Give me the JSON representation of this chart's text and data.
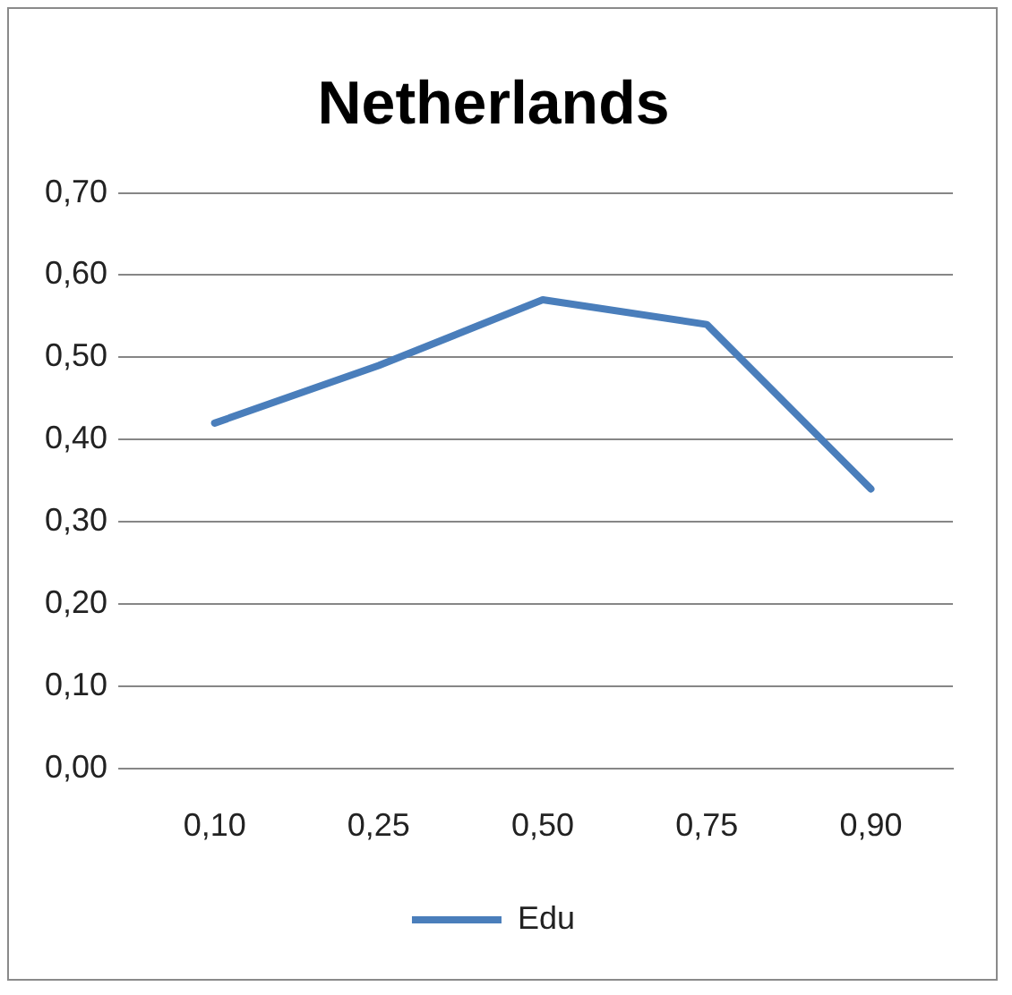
{
  "chart_data": {
    "type": "line",
    "title": "Netherlands",
    "categories": [
      "0,10",
      "0,25",
      "0,50",
      "0,75",
      "0,90"
    ],
    "series": [
      {
        "name": "Edu",
        "color": "#4a7ebb",
        "values": [
          0.42,
          0.49,
          0.57,
          0.54,
          0.34
        ]
      }
    ],
    "ylim": [
      0,
      0.7
    ],
    "yticks": [
      {
        "value": 0,
        "label": "0,00"
      },
      {
        "value": 0.1,
        "label": "0,10"
      },
      {
        "value": 0.2,
        "label": "0,20"
      },
      {
        "value": 0.3,
        "label": "0,30"
      },
      {
        "value": 0.4,
        "label": "0,40"
      },
      {
        "value": 0.5,
        "label": "0,50"
      },
      {
        "value": 0.6,
        "label": "0,60"
      },
      {
        "value": 0.7,
        "label": "0,70"
      }
    ],
    "grid": "y",
    "legend": "bottom",
    "marker": "none",
    "line_style": "solid"
  }
}
